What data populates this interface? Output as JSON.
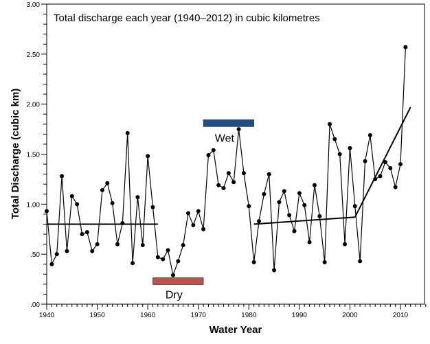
{
  "chart_data": {
    "type": "line",
    "title": "Total discharge each year (1940–2012) in cubic kilometres",
    "xlabel": "Water Year",
    "ylabel": "Total Discharge (cubic km)",
    "xlim": [
      1940,
      2015
    ],
    "ylim": [
      0,
      3
    ],
    "x_ticks": [
      1940,
      1950,
      1960,
      1970,
      1980,
      1990,
      2000,
      2010
    ],
    "y_ticks": [
      0,
      0.5,
      1,
      1.5,
      2,
      2.5,
      3
    ],
    "y_tick_labels": [
      ".00",
      ".50",
      "1.00",
      "1.50",
      "2.00",
      "2.50",
      "3.00"
    ],
    "grid": false,
    "series": [
      {
        "x": [
          1940,
          1941,
          1942,
          1943,
          1944,
          1945,
          1946,
          1947,
          1948,
          1949,
          1950,
          1951,
          1952,
          1953,
          1954,
          1955,
          1956,
          1957,
          1958,
          1959,
          1960,
          1961,
          1962,
          1963,
          1964,
          1965,
          1966,
          1967,
          1968,
          1969,
          1970,
          1971,
          1972,
          1973,
          1974,
          1975,
          1976,
          1977,
          1978,
          1979,
          1980,
          1981,
          1982,
          1983,
          1984,
          1985,
          1986,
          1987,
          1988,
          1989,
          1990,
          1991,
          1992,
          1993,
          1994,
          1995,
          1996,
          1997,
          1998,
          1999,
          2000,
          2001,
          2002,
          2003,
          2004,
          2005,
          2006,
          2007,
          2008,
          2009,
          2010,
          2011
        ],
        "y": [
          0.93,
          0.4,
          0.5,
          1.28,
          0.53,
          1.08,
          1.0,
          0.7,
          0.72,
          0.53,
          0.6,
          1.14,
          1.21,
          1.01,
          0.6,
          0.81,
          1.71,
          0.41,
          1.07,
          0.59,
          1.48,
          0.97,
          0.47,
          0.45,
          0.54,
          0.29,
          0.43,
          0.59,
          0.91,
          0.79,
          0.93,
          0.75,
          1.49,
          1.54,
          1.19,
          1.16,
          1.31,
          1.22,
          1.75,
          1.31,
          0.98,
          0.42,
          0.83,
          1.1,
          1.3,
          0.34,
          1.02,
          1.13,
          0.89,
          0.73,
          1.11,
          0.99,
          0.62,
          1.19,
          0.88,
          0.42,
          1.8,
          1.65,
          1.5,
          0.6,
          1.56,
          0.98,
          0.43,
          1.43,
          1.69,
          1.25,
          1.28,
          1.42,
          1.36,
          1.17,
          1.4,
          2.57
        ]
      }
    ],
    "trend_lines": [
      {
        "x": [
          1940,
          1962
        ],
        "y": [
          0.8,
          0.8
        ]
      },
      {
        "x": [
          1981,
          2001
        ],
        "y": [
          0.8,
          0.87
        ]
      },
      {
        "x": [
          2001,
          2012
        ],
        "y": [
          0.87,
          1.97
        ]
      }
    ],
    "annotations": [
      {
        "label": "Wet",
        "x": [
          1971,
          1981
        ],
        "y": 1.81,
        "color": "#1f4e8c"
      },
      {
        "label": "Dry",
        "x": [
          1961,
          1971
        ],
        "y": 0.23,
        "color": "#c0504d"
      }
    ]
  }
}
